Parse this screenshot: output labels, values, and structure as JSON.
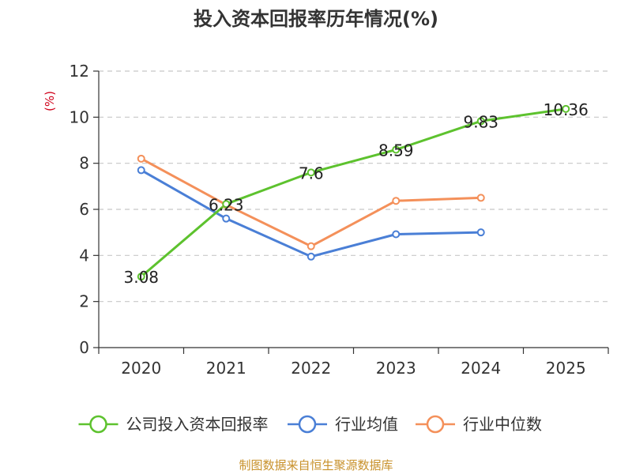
{
  "chart_data": {
    "type": "line",
    "title": "投入资本回报率历年情况(%)",
    "ylabel": "(%)",
    "xlabel": "",
    "categories": [
      "2020",
      "2021",
      "2022",
      "2023",
      "2024",
      "2025"
    ],
    "ylim": [
      0,
      12
    ],
    "yticks": [
      0,
      2,
      4,
      6,
      8,
      10,
      12
    ],
    "grid": "horizontal-dashed",
    "legend_position": "bottom",
    "series": [
      {
        "name": "公司投入资本回报率",
        "color": "#5dc22e",
        "show_labels": true,
        "values": [
          3.08,
          6.23,
          7.6,
          8.59,
          9.83,
          10.36
        ],
        "labels": [
          "3.08",
          "6.23",
          "7.6",
          "8.59",
          "9.83",
          "10.36"
        ]
      },
      {
        "name": "行业均值",
        "color": "#4a7fd6",
        "show_labels": false,
        "values": [
          7.7,
          5.6,
          3.95,
          4.92,
          5.0,
          null
        ],
        "labels": []
      },
      {
        "name": "行业中位数",
        "color": "#f4905a",
        "show_labels": false,
        "values": [
          8.2,
          6.2,
          4.4,
          6.37,
          6.5,
          null
        ],
        "labels": []
      }
    ]
  },
  "axis_color": "#333333",
  "unit_color": "#d0021b",
  "source": "制图数据来自恒生聚源数据库"
}
